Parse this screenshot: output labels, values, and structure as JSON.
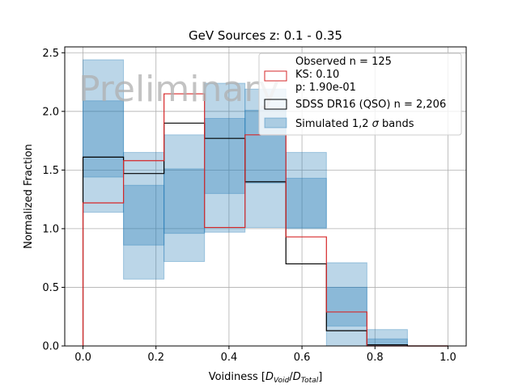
{
  "chart_data": {
    "type": "histogram",
    "title": "GeV Sources z: 0.1 - 0.35",
    "xlabel_text": "Voidiness [",
    "xlabel_d1": "D",
    "xlabel_sub1": "Void",
    "xlabel_slash": "/",
    "xlabel_d2": "D",
    "xlabel_sub2": "Total",
    "xlabel_close": "]",
    "ylabel": "Normalized Fraction",
    "xlim": [
      -0.05,
      1.05
    ],
    "ylim": [
      0,
      2.55
    ],
    "grid": true,
    "x_ticks": [
      0.0,
      0.2,
      0.4,
      0.6,
      0.8,
      1.0
    ],
    "x_tick_labels": [
      "0.0",
      "0.2",
      "0.4",
      "0.6",
      "0.8",
      "1.0"
    ],
    "y_ticks": [
      0.0,
      0.5,
      1.0,
      1.5,
      2.0,
      2.5
    ],
    "y_tick_labels": [
      "0.0",
      "0.5",
      "1.0",
      "1.5",
      "2.0",
      "2.5"
    ],
    "bin_edges": [
      0.0,
      0.111,
      0.222,
      0.333,
      0.444,
      0.556,
      0.667,
      0.778,
      0.889,
      1.0
    ],
    "observed": {
      "name": "Observed n = 125",
      "color": "#d62728",
      "values": [
        1.22,
        1.58,
        2.15,
        1.01,
        1.8,
        0.93,
        0.29,
        0.0,
        0.0
      ]
    },
    "reference": {
      "name": "SDSS DR16 (QSO) n = 2,206",
      "color": "#000000",
      "values": [
        1.61,
        1.47,
        1.9,
        1.77,
        1.4,
        0.7,
        0.13,
        0.01,
        0.0
      ]
    },
    "bands": {
      "name": "Simulated 1,2 σ bands",
      "color": "#1f77b4",
      "sigma1_low": [
        1.44,
        0.86,
        0.96,
        1.3,
        1.39,
        1.01,
        0.17,
        0.0,
        0.0
      ],
      "sigma1_high": [
        2.09,
        1.37,
        1.51,
        1.94,
        2.01,
        1.43,
        0.5,
        0.06,
        0.0
      ],
      "sigma2_low": [
        1.14,
        0.57,
        0.72,
        0.97,
        1.01,
        1.0,
        0.0,
        0.0,
        0.0
      ],
      "sigma2_high": [
        2.44,
        1.65,
        1.8,
        2.24,
        2.19,
        1.65,
        0.71,
        0.14,
        0.0
      ]
    },
    "legend_location": "upper right",
    "legend": {
      "observed_line1": "Observed n = 125",
      "observed_line2": "KS: 0.10",
      "observed_line3": "p: 1.90e-01",
      "reference_label": "SDSS DR16 (QSO) n = 2,206",
      "bands_label_prefix": "Simulated 1,2 ",
      "bands_label_sigma": "σ",
      "bands_label_suffix": " bands"
    },
    "watermark": "Preliminary"
  }
}
